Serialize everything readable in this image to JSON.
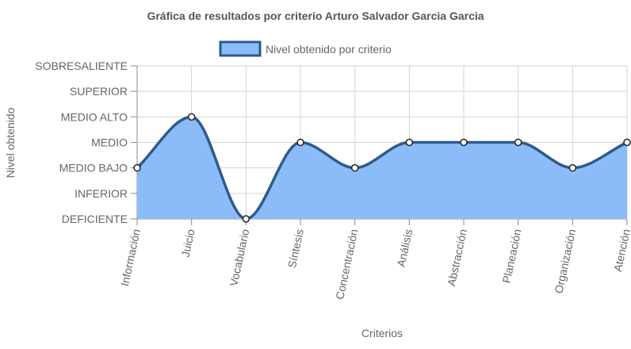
{
  "chart_data": {
    "type": "area",
    "title": "Gráfica de resultados por criterio Arturo Salvador Garcia Garcia",
    "xlabel": "Criterios",
    "ylabel": "Nivel obtenido",
    "categories": [
      "Información",
      "Juicio",
      "Vocabulario",
      "Síntesis",
      "Concentración",
      "Análisis",
      "Abstracción",
      "Planeación",
      "Organización",
      "Atención"
    ],
    "y_levels": [
      "DEFICIENTE",
      "INFERIOR",
      "MEDIO BAJO",
      "MEDIO",
      "MEDIO ALTO",
      "SUPERIOR",
      "SOBRESALIENTE"
    ],
    "ylim": [
      0,
      6
    ],
    "grid": true,
    "legend_position": "top",
    "series": [
      {
        "name": "Nivel obtenido por criterio",
        "values": [
          2,
          4,
          0,
          3,
          2,
          3,
          3,
          3,
          2,
          3
        ],
        "value_labels": [
          "MEDIO BAJO",
          "MEDIO ALTO",
          "DEFICIENTE",
          "MEDIO",
          "MEDIO BAJO",
          "MEDIO",
          "MEDIO",
          "MEDIO",
          "MEDIO BAJO",
          "MEDIO"
        ]
      }
    ],
    "colors": {
      "fill": "#8cbcf7",
      "line": "#2e5a8c",
      "grid": "#d4d4d4",
      "axis": "#888888",
      "text": "#666666",
      "title": "#555555"
    }
  }
}
